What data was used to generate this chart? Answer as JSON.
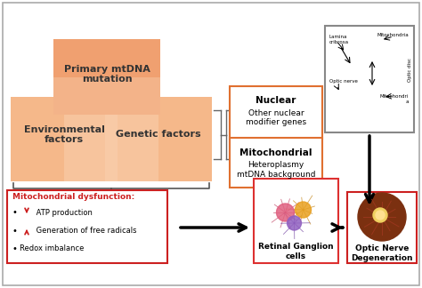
{
  "bg_color": "#ffffff",
  "salmon_top": "#f0a070",
  "salmon_mid": "#f5b890",
  "salmon_fade": "#fad0b0",
  "orange_border": "#e07030",
  "gray_border": "#888888",
  "red_border": "#cc2020",
  "black": "#000000",
  "box1_text": "Primary mtDNA\nmutation",
  "box2_text": "Environmental\nfactors",
  "box3_text": "Genetic factors",
  "nuclear_title": "Nuclear",
  "nuclear_sub": "Other nuclear\nmodifier genes",
  "mito_title": "Mitochondrial",
  "mito_sub": "Heteroplasmy\nmtDNA background",
  "rgc_label": "Retinal Ganglion\ncells",
  "optic_label": "Optic Nerve\nDegeneration",
  "dysfunc_title": "Mitochondrial dysfunction:",
  "bullet1": " ATP production",
  "bullet2": " Generation of free radicals",
  "bullet3": "  Redox imbalance",
  "lamina_label": "Lamina\ncribrosa",
  "optic_nerve_label": "Optic nerve",
  "mito_label1": "Mitochondria",
  "mito_label2": "Mitochondri\na",
  "optic_disc_label": "Optic disc"
}
